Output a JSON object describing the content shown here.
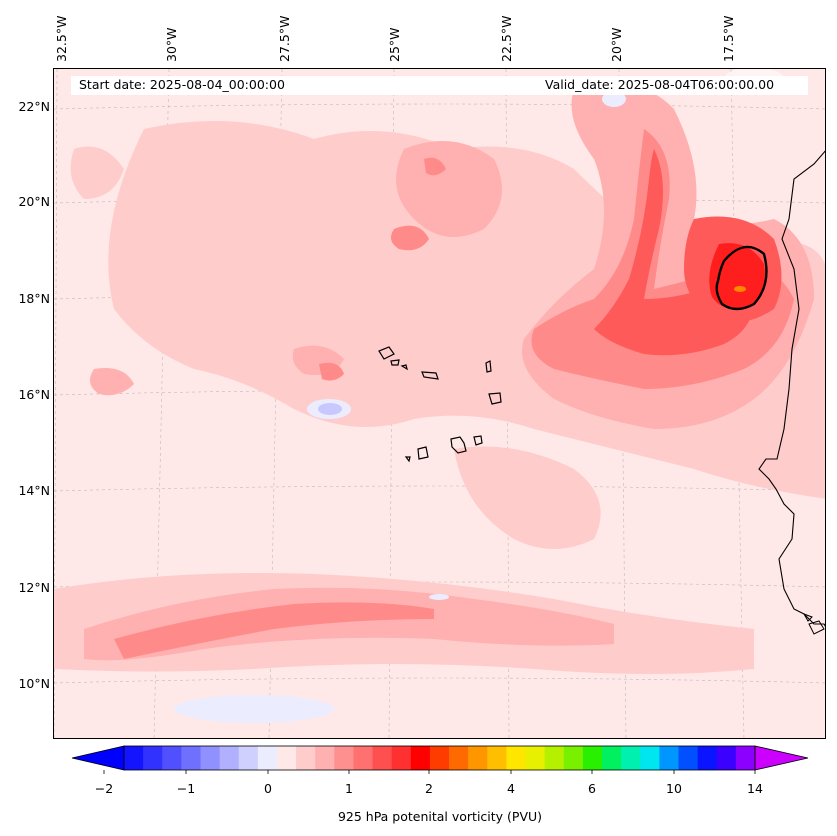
{
  "map": {
    "start_date": "Start date: 2025-08-04_00:00:00",
    "valid_date": "Valid_date: 2025-08-04T06:00:00.00",
    "lon_labels": [
      "32.5°W",
      "30°W",
      "27.5°W",
      "25°W",
      "22.5°W",
      "20°W",
      "17.5°W"
    ],
    "lat_labels": [
      "22°N",
      "20°N",
      "18°N",
      "16°N",
      "14°N",
      "12°N",
      "10°N"
    ],
    "colors": {
      "background": "#ffe8e8",
      "light": "#ffcccc",
      "mid": "#ffb0b0",
      "strong": "#ff8a8a",
      "deep": "#ff5a5a",
      "core": "#ff1e1e",
      "peak": "#ff8800",
      "negative": "#c8c8ff",
      "negative_light": "#ececff",
      "coast": "#000000"
    }
  },
  "colorbar": {
    "label": "925 hPa potenital vorticity (PVU)",
    "tick_labels": [
      "−2",
      "−1",
      "0",
      "1",
      "2",
      "4",
      "6",
      "10",
      "14"
    ],
    "colors": [
      "#1414ff",
      "#3232ff",
      "#5050ff",
      "#7070ff",
      "#9090ff",
      "#b0b0ff",
      "#d0d0ff",
      "#ececff",
      "#ffe8e8",
      "#ffcccc",
      "#ffb0b0",
      "#ff9090",
      "#ff7070",
      "#ff5050",
      "#ff3030",
      "#ff0000",
      "#ff3c00",
      "#ff6a00",
      "#ff9600",
      "#ffbe00",
      "#ffe600",
      "#e6f000",
      "#b4f000",
      "#78f000",
      "#28f000",
      "#00f060",
      "#00f0b0",
      "#00e6f0",
      "#0096ff",
      "#0050ff",
      "#0a14ff",
      "#3c00ff",
      "#8c00ff"
    ],
    "under_color": "#0000ff",
    "over_color": "#cc00ff"
  }
}
